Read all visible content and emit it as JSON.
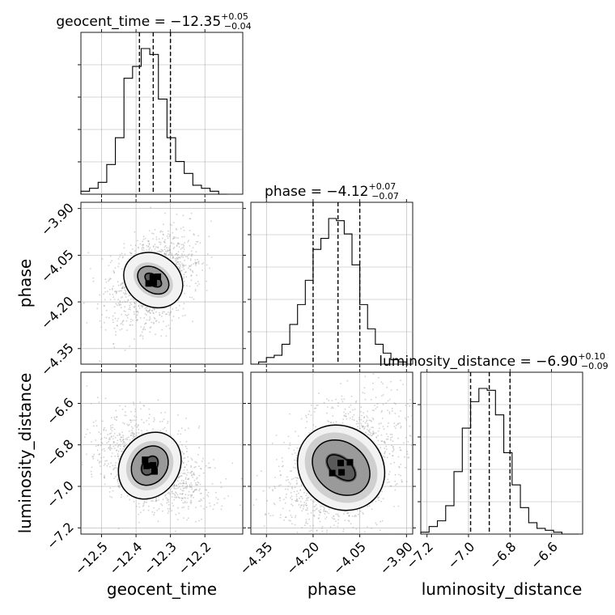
{
  "chart_data": {
    "type": "corner",
    "parameters": [
      {
        "name": "geocent_time",
        "label": "geocent_time",
        "median": -12.35,
        "plus": "0.05",
        "minus": "0.04",
        "title_main": "geocent_time = −12.35",
        "title_sup": "+0.05",
        "title_sub": "−0.04",
        "range": [
          -12.56,
          -12.09
        ],
        "ticks": [
          -12.5,
          -12.4,
          -12.3,
          -12.2
        ],
        "tick_labels": [
          "−12.5",
          "−12.4",
          "−12.3",
          "−12.2"
        ],
        "quantiles": [
          -12.39,
          -12.35,
          -12.3
        ]
      },
      {
        "name": "phase",
        "label": "phase",
        "median": -4.12,
        "plus": "0.07",
        "minus": "0.07",
        "title_main": "phase = −4.12",
        "title_sup": "+0.07",
        "title_sub": "−0.07",
        "range": [
          -4.4,
          -3.88
        ],
        "ticks": [
          -4.35,
          -4.2,
          -4.05,
          -3.9
        ],
        "tick_labels": [
          "−4.35",
          "−4.20",
          "−4.05",
          "−3.90"
        ],
        "quantiles": [
          -4.2,
          -4.12,
          -4.05
        ]
      },
      {
        "name": "luminosity_distance",
        "label": "luminosity_distance",
        "median": -6.9,
        "plus": "0.10",
        "minus": "0.09",
        "title_main": "luminosity_distance = −6.90",
        "title_sup": "+0.10",
        "title_sub": "−0.09",
        "range": [
          -7.23,
          -6.45
        ],
        "ticks": [
          -7.2,
          -7.0,
          -6.8,
          -6.6
        ],
        "tick_labels": [
          "−7.2",
          "−7.0",
          "−6.8",
          "−6.6"
        ],
        "quantiles": [
          -6.99,
          -6.9,
          -6.8
        ]
      }
    ],
    "histograms": [
      {
        "param": 0,
        "bin_edges": [
          -12.56,
          -12.535,
          -12.51,
          -12.485,
          -12.46,
          -12.435,
          -12.41,
          -12.385,
          -12.36,
          -12.335,
          -12.31,
          -12.285,
          -12.26,
          -12.235,
          -12.21,
          -12.185,
          -12.16,
          -12.135
        ],
        "counts": [
          1,
          2,
          4,
          10,
          19,
          39,
          43,
          49,
          47,
          32,
          19,
          11,
          7,
          3,
          2,
          1,
          0
        ]
      },
      {
        "param": 1,
        "bin_edges": [
          -4.4,
          -4.375,
          -4.35,
          -4.325,
          -4.3,
          -4.275,
          -4.25,
          -4.225,
          -4.2,
          -4.175,
          -4.15,
          -4.125,
          -4.1,
          -4.075,
          -4.05,
          -4.025,
          -4.0,
          -3.975,
          -3.95,
          -3.925,
          -3.9
        ],
        "counts": [
          0,
          1,
          3,
          4,
          9,
          18,
          27,
          38,
          52,
          57,
          66,
          65,
          59,
          45,
          27,
          16,
          9,
          5,
          2,
          1
        ]
      },
      {
        "param": 2,
        "bin_edges": [
          -7.23,
          -7.19,
          -7.15,
          -7.11,
          -7.07,
          -7.03,
          -6.99,
          -6.95,
          -6.91,
          -6.87,
          -6.83,
          -6.79,
          -6.75,
          -6.71,
          -6.67,
          -6.63,
          -6.59,
          -6.55,
          -6.51,
          -6.47
        ],
        "counts": [
          1,
          4,
          7,
          15,
          33,
          56,
          70,
          77,
          76,
          63,
          43,
          26,
          14,
          6,
          3,
          2,
          1,
          0,
          0
        ]
      }
    ],
    "contour_levels": [
      {
        "x_param": 0,
        "y_param": 1,
        "outer_rx": 0.075,
        "outer_ry": 0.1,
        "inner_rx": 0.035,
        "inner_ry": 0.055,
        "core_rx": 0.015,
        "core_ry": 0.03,
        "center": [
          -12.35,
          -4.13
        ],
        "tilt_deg": -55
      },
      {
        "x_param": 0,
        "y_param": 2,
        "outer_rx": 0.085,
        "outer_ry": 0.17,
        "inner_rx": 0.05,
        "inner_ry": 0.1,
        "core_rx": 0.02,
        "core_ry": 0.05,
        "center": [
          -12.36,
          -6.9
        ],
        "tilt_deg": 35
      },
      {
        "x_param": 1,
        "y_param": 2,
        "outer_rx": 0.13,
        "outer_ry": 0.22,
        "inner_rx": 0.08,
        "inner_ry": 0.15,
        "core_rx": 0.03,
        "core_ry": 0.08,
        "center": [
          -4.11,
          -6.91
        ],
        "tilt_deg": -50
      }
    ],
    "grid": true,
    "x_axis_labels": [
      "geocent_time",
      "phase",
      "luminosity_distance"
    ],
    "y_axis_labels": [
      "phase",
      "luminosity_distance"
    ]
  }
}
